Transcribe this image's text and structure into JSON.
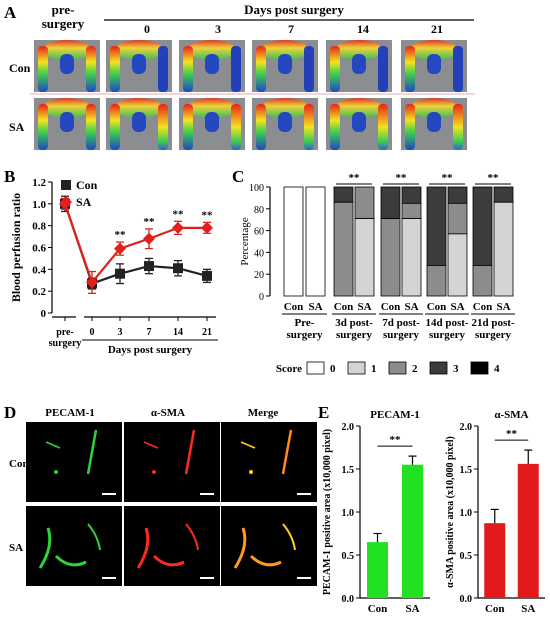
{
  "panel_letters": [
    "A",
    "B",
    "C",
    "D",
    "E"
  ],
  "panel_a": {
    "header": "Days post surgery",
    "presurgery_label": "pre-\nsurgery",
    "day_labels": [
      "0",
      "3",
      "7",
      "14",
      "21"
    ],
    "row_labels": [
      "Con",
      "SA"
    ]
  },
  "panel_d": {
    "column_titles": [
      "PECAM-1",
      "α-SMA",
      "Merge"
    ],
    "row_labels": [
      "Con",
      "SA"
    ]
  },
  "chart_data": [
    {
      "type": "line",
      "panel": "B",
      "ylabel": "Blood perfusion ratio",
      "xlabel": "Days post surgery",
      "x_categories": [
        "pre-\nsurgery",
        "0",
        "3",
        "7",
        "14",
        "21"
      ],
      "ylim": [
        0,
        1.2
      ],
      "yticks": [
        "0",
        "0.2",
        "0.4",
        "0.6",
        "0.8",
        "1.0",
        "1.2"
      ],
      "series": [
        {
          "name": "Con",
          "color": "#222222",
          "marker": "square",
          "values": [
            1.0,
            0.27,
            0.36,
            0.43,
            0.41,
            0.34
          ],
          "errors": [
            0.07,
            0.05,
            0.09,
            0.07,
            0.07,
            0.06
          ]
        },
        {
          "name": "SA",
          "color": "#e0201b",
          "marker": "diamond",
          "values": [
            1.0,
            0.28,
            0.59,
            0.68,
            0.78,
            0.78
          ],
          "errors": [
            0.05,
            0.1,
            0.06,
            0.09,
            0.06,
            0.05
          ]
        }
      ],
      "significance": [
        "",
        "",
        "**",
        "**",
        "**",
        "**"
      ]
    },
    {
      "type": "bar",
      "subtype": "stacked-percent",
      "panel": "C",
      "ylabel": "Percentage",
      "ylim": [
        0,
        100
      ],
      "yticks": [
        "0",
        "20",
        "40",
        "60",
        "80",
        "100"
      ],
      "bar_labels": [
        "Con",
        "SA",
        "Con",
        "SA",
        "Con",
        "SA",
        "Con",
        "SA",
        "Con",
        "SA"
      ],
      "group_labels": [
        "Pre-\nsurgery",
        "3d post-\nsurgery",
        "7d post-\nsurgery",
        "14d post-\nsurgery",
        "21d post-\nsurgery"
      ],
      "significance": [
        "",
        "**",
        "**",
        "**",
        "**"
      ],
      "legend_title": "Score",
      "score_names": [
        "0",
        "1",
        "2",
        "3",
        "4"
      ],
      "score_colors": [
        "#ffffff",
        "#d4d4d4",
        "#8c8c8c",
        "#3c3c3c",
        "#000000"
      ],
      "stacks": [
        [
          100,
          0,
          0,
          0,
          0
        ],
        [
          100,
          0,
          0,
          0,
          0
        ],
        [
          0,
          0,
          86,
          14,
          0
        ],
        [
          0,
          71,
          29,
          0,
          0
        ],
        [
          0,
          0,
          71,
          29,
          0
        ],
        [
          0,
          71,
          14,
          15,
          0
        ],
        [
          0,
          0,
          28,
          72,
          0
        ],
        [
          0,
          57,
          28,
          15,
          0
        ],
        [
          0,
          0,
          28,
          72,
          0
        ],
        [
          0,
          86,
          0,
          14,
          0
        ]
      ]
    },
    {
      "type": "bar",
      "panel": "E-left",
      "title": "PECAM-1",
      "ylabel": "PECAM-1 positive area (x10,000 pixel)",
      "categories": [
        "Con",
        "SA"
      ],
      "values": [
        0.65,
        1.55
      ],
      "errors": [
        0.1,
        0.1
      ],
      "colors": [
        "#22e022",
        "#22e022"
      ],
      "ylim": [
        0,
        2.0
      ],
      "yticks": [
        "0.0",
        "0.5",
        "1.0",
        "1.5",
        "2.0"
      ],
      "significance": "**"
    },
    {
      "type": "bar",
      "panel": "E-right",
      "title": "α-SMA",
      "ylabel": "α-SMA positive area (x10,000 pixel)",
      "categories": [
        "Con",
        "SA"
      ],
      "values": [
        0.87,
        1.56
      ],
      "errors": [
        0.16,
        0.16
      ],
      "colors": [
        "#e31a1a",
        "#e31a1a"
      ],
      "ylim": [
        0,
        2.0
      ],
      "yticks": [
        "0.0",
        "0.5",
        "1.0",
        "1.5",
        "2.0"
      ],
      "significance": "**"
    }
  ]
}
